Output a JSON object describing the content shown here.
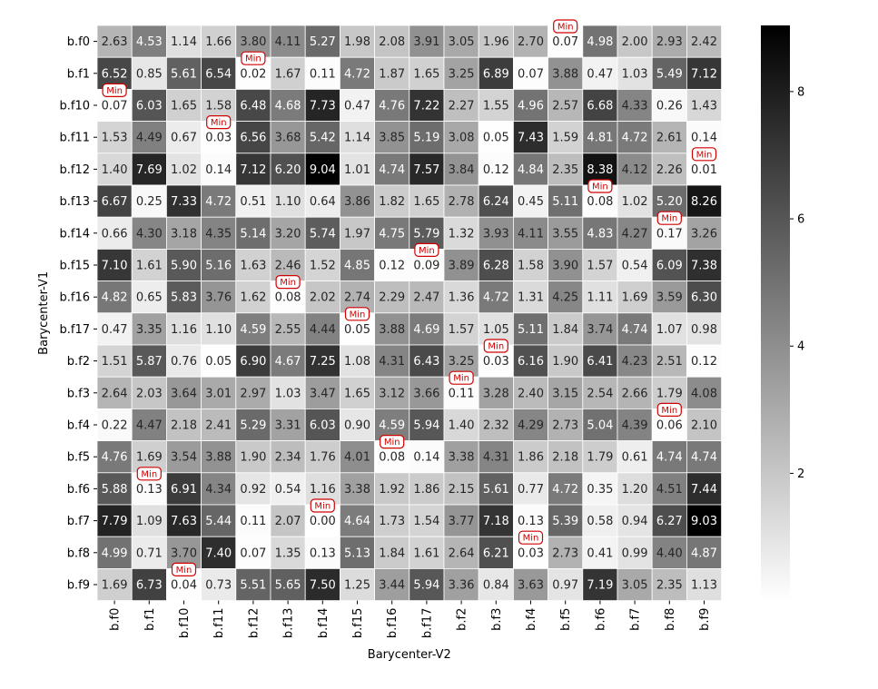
{
  "chart_data": {
    "type": "heatmap",
    "xlabel": "Barycenter-V2",
    "ylabel": "Barycenter-V1",
    "x_categories": [
      "b.f0",
      "b.f1",
      "b.f10",
      "b.f11",
      "b.f12",
      "b.f13",
      "b.f14",
      "b.f15",
      "b.f16",
      "b.f17",
      "b.f2",
      "b.f3",
      "b.f4",
      "b.f5",
      "b.f6",
      "b.f7",
      "b.f8",
      "b.f9"
    ],
    "y_categories": [
      "b.f0",
      "b.f1",
      "b.f10",
      "b.f11",
      "b.f12",
      "b.f13",
      "b.f14",
      "b.f15",
      "b.f16",
      "b.f17",
      "b.f2",
      "b.f3",
      "b.f4",
      "b.f5",
      "b.f6",
      "b.f7",
      "b.f8",
      "b.f9"
    ],
    "values": [
      [
        2.63,
        4.53,
        1.14,
        1.66,
        3.8,
        4.11,
        5.27,
        1.98,
        2.08,
        3.91,
        3.05,
        1.96,
        2.7,
        0.07,
        4.98,
        2.0,
        2.93,
        2.42
      ],
      [
        6.52,
        0.85,
        5.61,
        6.54,
        0.02,
        1.67,
        0.11,
        4.72,
        1.87,
        1.65,
        3.25,
        6.89,
        0.07,
        3.88,
        0.47,
        1.03,
        5.49,
        7.12
      ],
      [
        0.07,
        6.03,
        1.65,
        1.58,
        6.48,
        4.68,
        7.73,
        0.47,
        4.76,
        7.22,
        2.27,
        1.55,
        4.96,
        2.57,
        6.68,
        4.33,
        0.26,
        1.43
      ],
      [
        1.53,
        4.49,
        0.67,
        0.03,
        6.56,
        3.68,
        5.42,
        1.14,
        3.85,
        5.19,
        3.08,
        0.05,
        7.43,
        1.59,
        4.81,
        4.72,
        2.61,
        0.14
      ],
      [
        1.4,
        7.69,
        1.02,
        0.14,
        7.12,
        6.2,
        9.04,
        1.01,
        4.74,
        7.57,
        3.84,
        0.12,
        4.84,
        2.35,
        8.38,
        4.12,
        2.26,
        0.01
      ],
      [
        6.67,
        0.25,
        7.33,
        4.72,
        0.51,
        1.1,
        0.64,
        3.86,
        1.82,
        1.65,
        2.78,
        6.24,
        0.45,
        5.11,
        0.08,
        1.02,
        5.2,
        8.26
      ],
      [
        0.66,
        4.3,
        3.18,
        4.35,
        5.14,
        3.2,
        5.74,
        1.97,
        4.75,
        5.79,
        1.32,
        3.93,
        4.11,
        3.55,
        4.83,
        4.27,
        0.17,
        3.26
      ],
      [
        7.1,
        1.61,
        5.9,
        5.16,
        1.63,
        2.46,
        1.52,
        4.85,
        0.12,
        0.09,
        3.89,
        6.28,
        1.58,
        3.9,
        1.57,
        0.54,
        6.09,
        7.38
      ],
      [
        4.82,
        0.65,
        5.83,
        3.76,
        1.62,
        0.08,
        2.02,
        2.74,
        2.29,
        2.47,
        1.36,
        4.72,
        1.31,
        4.25,
        1.11,
        1.69,
        3.59,
        6.3
      ],
      [
        0.47,
        3.35,
        1.16,
        1.1,
        4.59,
        2.55,
        4.44,
        0.05,
        3.88,
        4.69,
        1.57,
        1.05,
        5.11,
        1.84,
        3.74,
        4.74,
        1.07,
        0.98
      ],
      [
        1.51,
        5.87,
        0.76,
        0.05,
        6.9,
        4.67,
        7.25,
        1.08,
        4.31,
        6.43,
        3.25,
        0.03,
        6.16,
        1.9,
        6.41,
        4.23,
        2.51,
        0.12
      ],
      [
        2.64,
        2.03,
        3.64,
        3.01,
        2.97,
        1.03,
        3.47,
        1.65,
        3.12,
        3.66,
        0.11,
        3.28,
        2.4,
        3.15,
        2.54,
        2.66,
        1.79,
        4.08
      ],
      [
        0.22,
        4.47,
        2.18,
        2.41,
        5.29,
        3.31,
        6.03,
        0.9,
        4.59,
        5.94,
        1.4,
        2.32,
        4.29,
        2.73,
        5.04,
        4.39,
        0.06,
        2.1
      ],
      [
        4.76,
        1.69,
        3.54,
        3.88,
        1.9,
        2.34,
        1.76,
        4.01,
        0.08,
        0.14,
        3.38,
        4.31,
        1.86,
        2.18,
        1.79,
        0.61,
        4.74,
        4.74
      ],
      [
        5.88,
        0.13,
        6.91,
        4.34,
        0.92,
        0.54,
        1.16,
        3.38,
        1.92,
        1.86,
        2.15,
        5.61,
        0.77,
        4.72,
        0.35,
        1.2,
        4.51,
        7.44
      ],
      [
        7.79,
        1.09,
        7.63,
        5.44,
        0.11,
        2.07,
        0.0,
        4.64,
        1.73,
        1.54,
        3.77,
        7.18,
        0.13,
        5.39,
        0.58,
        0.94,
        6.27,
        9.03
      ],
      [
        4.99,
        0.71,
        3.7,
        7.4,
        0.07,
        1.35,
        0.13,
        5.13,
        1.84,
        1.61,
        2.64,
        6.21,
        0.03,
        2.73,
        0.41,
        0.99,
        4.4,
        4.87
      ],
      [
        1.69,
        6.73,
        0.04,
        0.73,
        5.51,
        5.65,
        7.5,
        1.25,
        3.44,
        5.94,
        3.36,
        0.84,
        3.63,
        0.97,
        7.19,
        3.05,
        2.35,
        1.13
      ]
    ],
    "annotation_text": "Min",
    "annotation_color": "#d00000",
    "colorscale": {
      "low": "#ffffff",
      "high": "#000000",
      "vmin": 0.0,
      "vmax": 9.04
    },
    "colorbar_ticks": [
      2,
      4,
      6,
      8
    ],
    "grid": false
  }
}
